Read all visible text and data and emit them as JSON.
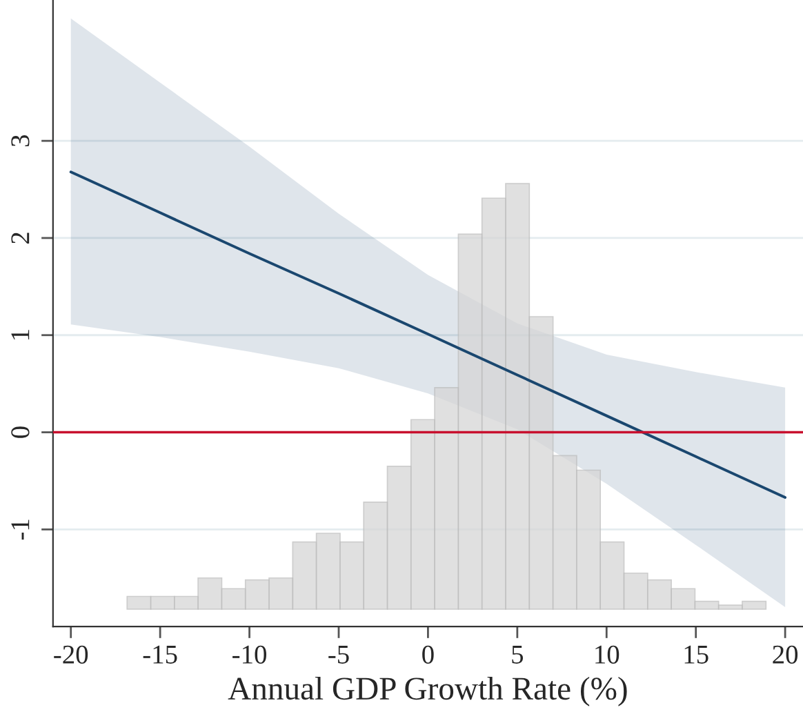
{
  "chart_data": {
    "type": "line",
    "xlabel": "Annual GDP Growth Rate (%)",
    "xlim": [
      -21,
      21
    ],
    "ylim": [
      -2,
      4.45
    ],
    "xticks": [
      -20,
      -15,
      -10,
      -5,
      0,
      5,
      10,
      15,
      20
    ],
    "yticks": [
      -1,
      0,
      1,
      2,
      3
    ],
    "grid": "y",
    "series": [
      {
        "type": "histogram",
        "color": "#d6d6d6",
        "bins": [
          -16.85,
          -15.525,
          -14.2,
          -12.875,
          -11.55,
          -10.225,
          -8.9,
          -7.575,
          -6.25,
          -4.925,
          -3.6,
          -2.275,
          -0.95,
          0.375,
          1.7,
          3.025,
          4.35,
          5.675,
          7.0,
          8.325,
          9.65,
          10.975,
          12.3,
          13.625,
          14.95,
          16.275,
          17.6,
          18.925
        ],
        "base": [
          -1.82,
          -1.82,
          -1.82,
          -1.82,
          -1.82,
          -1.82,
          -1.82,
          -1.82,
          -1.82,
          -1.82,
          -1.82,
          -1.82,
          -1.82,
          -1.82,
          -1.82,
          -1.82,
          -1.82,
          -1.82,
          -1.82,
          -1.82,
          -1.82,
          -1.82,
          -1.82,
          -1.82,
          -1.82,
          -1.82,
          -1.82
        ],
        "values": [
          0.13,
          0.13,
          0.13,
          0.32,
          0.21,
          0.3,
          0.32,
          0.69,
          0.78,
          0.69,
          1.1,
          1.47,
          1.95,
          2.28,
          3.86,
          4.23,
          4.38,
          3.01,
          1.58,
          1.43,
          0.69,
          0.37,
          0.3,
          0.21,
          0.08,
          0.04,
          0.08
        ]
      },
      {
        "color": "#1a476f",
        "x": [
          -20,
          -15,
          -10,
          -5,
          0,
          5,
          10,
          15,
          20
        ],
        "values": [
          2.68,
          2.26,
          1.84,
          1.43,
          1.01,
          0.59,
          0.17,
          -0.25,
          -0.67
        ],
        "upper": [
          4.26,
          3.6,
          2.94,
          2.25,
          1.62,
          1.12,
          0.8,
          0.62,
          0.46
        ],
        "lower": [
          1.11,
          0.98,
          0.83,
          0.66,
          0.4,
          0.03,
          -0.53,
          -1.16,
          -1.8
        ]
      }
    ],
    "ref_lines": [
      {
        "axis": "y",
        "value": 0,
        "color": "#c8102e",
        "line_style": "solid"
      }
    ]
  }
}
